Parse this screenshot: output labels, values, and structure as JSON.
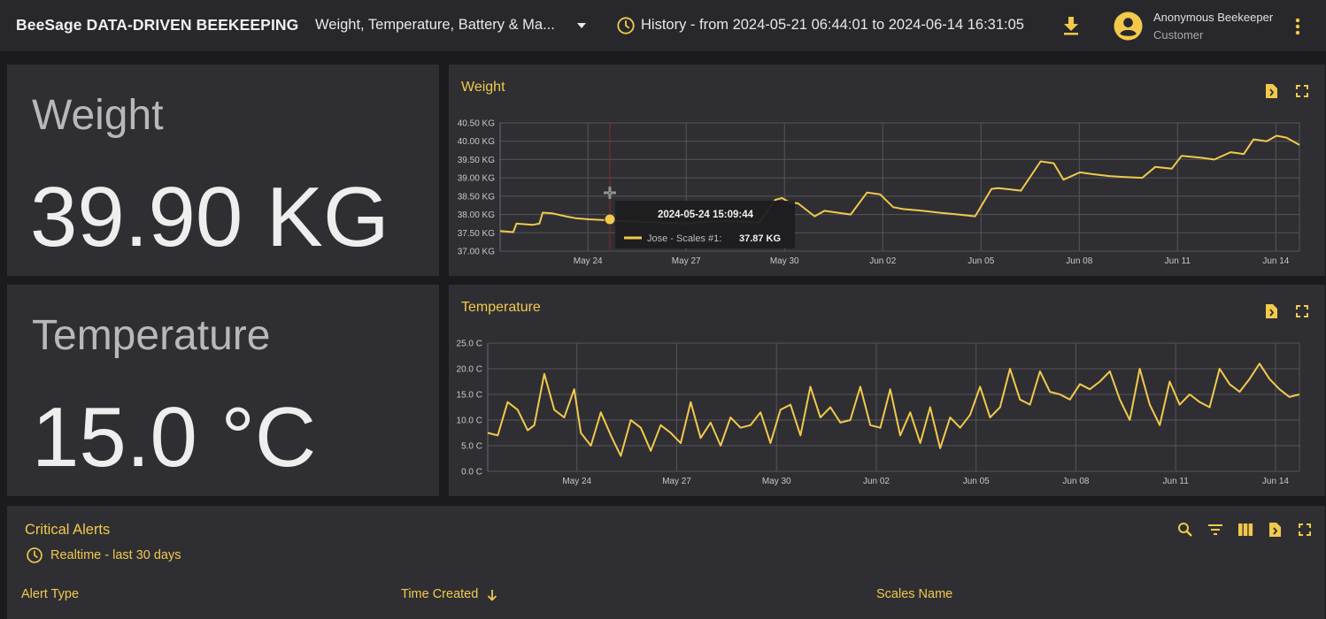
{
  "header": {
    "brand": "BeeSage DATA-DRIVEN BEEKEEPING",
    "dashboard_selector": "Weight, Temperature, Battery & Ma...",
    "history": "History - from 2024-05-21 06:44:01 to 2024-06-14 16:31:05",
    "user_name": "Anonymous Beekeeper",
    "user_role": "Customer",
    "icons": [
      "history-clock-icon",
      "download-icon",
      "avatar-icon",
      "more-vert-icon"
    ]
  },
  "weight_card": {
    "label": "Weight",
    "value": "39.90 KG"
  },
  "temperature_card": {
    "label": "Temperature",
    "value": "15.0 °C"
  },
  "weight_chart": {
    "title": "Weight",
    "tooltip": {
      "time": "2024-05-24 15:09:44",
      "series": "Jose - Scales #1:",
      "value": "37.87 KG"
    }
  },
  "temperature_chart": {
    "title": "Temperature"
  },
  "alerts": {
    "title": "Critical Alerts",
    "subtitle": "Realtime - last 30 days",
    "columns": [
      "Alert Type",
      "Time Created",
      "Scales Name"
    ],
    "sort_column": "Time Created",
    "icons": [
      "search-icon",
      "filter-icon",
      "columns-icon",
      "export-icon",
      "fullscreen-icon"
    ]
  },
  "colors": {
    "accent": "#f2c94c",
    "background": "#1b1b1e",
    "card": "#2f2f33",
    "topbar": "#28282c"
  },
  "chart_data": [
    {
      "type": "line",
      "title": "Weight",
      "ylabel": "",
      "xlabel": "",
      "ylim": [
        37.0,
        40.5
      ],
      "y_ticks": [
        "37.00 KG",
        "37.50 KG",
        "38.00 KG",
        "38.50 KG",
        "39.00 KG",
        "39.50 KG",
        "40.00 KG",
        "40.50 KG"
      ],
      "x_ticks": [
        "May 24",
        "May 27",
        "May 30",
        "Jun 02",
        "Jun 05",
        "Jun 08",
        "Jun 11",
        "Jun 14"
      ],
      "x_range_days": [
        0,
        24.4
      ],
      "x_tick_days": [
        2.68,
        5.68,
        8.68,
        11.68,
        14.68,
        17.68,
        20.68,
        23.68
      ],
      "grid": true,
      "series": [
        {
          "name": "Jose - Scales #1",
          "color": "#f2c94c",
          "x": [
            0,
            0.4,
            0.5,
            1.0,
            1.2,
            1.3,
            1.6,
            2.0,
            2.3,
            2.7,
            3.1,
            3.7,
            4.3,
            5.0,
            5.7,
            6.3,
            6.8,
            7.4,
            7.9,
            8.4,
            8.6,
            8.8,
            9.1,
            9.6,
            9.9,
            10.3,
            10.7,
            11.2,
            11.6,
            12.0,
            12.3,
            12.9,
            13.4,
            14.0,
            14.5,
            15.0,
            15.2,
            15.9,
            16.5,
            16.9,
            17.2,
            17.7,
            18.1,
            18.6,
            19.1,
            19.6,
            20.0,
            20.5,
            20.8,
            21.4,
            21.8,
            22.3,
            22.7,
            23.0,
            23.4,
            23.7,
            24.0,
            24.4
          ],
          "y": [
            37.55,
            37.52,
            37.75,
            37.72,
            37.75,
            38.05,
            38.03,
            37.95,
            37.9,
            37.87,
            37.85,
            37.82,
            37.8,
            37.78,
            37.75,
            37.8,
            37.82,
            37.8,
            37.78,
            38.4,
            38.45,
            38.35,
            38.3,
            37.95,
            38.1,
            38.05,
            38.0,
            38.6,
            38.55,
            38.2,
            38.15,
            38.1,
            38.05,
            38.0,
            37.95,
            38.7,
            38.72,
            38.65,
            39.45,
            39.4,
            38.95,
            39.15,
            39.1,
            39.05,
            39.02,
            39.0,
            39.3,
            39.25,
            39.6,
            39.55,
            39.5,
            39.7,
            39.65,
            40.05,
            40.0,
            40.15,
            40.1,
            39.9
          ]
        }
      ]
    },
    {
      "type": "line",
      "title": "Temperature",
      "ylabel": "",
      "xlabel": "",
      "ylim": [
        0,
        25
      ],
      "y_ticks": [
        "0.0 C",
        "5.0 C",
        "10.0 C",
        "15.0 C",
        "20.0 C",
        "25.0 C"
      ],
      "x_ticks": [
        "May 24",
        "May 27",
        "May 30",
        "Jun 02",
        "Jun 05",
        "Jun 08",
        "Jun 11",
        "Jun 14"
      ],
      "x_range_days": [
        0,
        24.4
      ],
      "x_tick_days": [
        2.68,
        5.68,
        8.68,
        11.68,
        14.68,
        17.68,
        20.68,
        23.68
      ],
      "grid": true,
      "series": [
        {
          "name": "Jose - Scales #1",
          "color": "#f2c94c",
          "x": [
            0,
            0.3,
            0.6,
            0.9,
            1.2,
            1.4,
            1.7,
            2.0,
            2.3,
            2.6,
            2.8,
            3.1,
            3.4,
            3.7,
            4.0,
            4.3,
            4.6,
            4.9,
            5.2,
            5.5,
            5.8,
            6.1,
            6.4,
            6.7,
            7.0,
            7.3,
            7.6,
            7.9,
            8.2,
            8.5,
            8.8,
            9.1,
            9.4,
            9.7,
            10.0,
            10.3,
            10.6,
            10.9,
            11.2,
            11.5,
            11.8,
            12.1,
            12.4,
            12.7,
            13.0,
            13.3,
            13.6,
            13.9,
            14.2,
            14.5,
            14.8,
            15.1,
            15.4,
            15.7,
            16.0,
            16.3,
            16.6,
            16.9,
            17.2,
            17.5,
            17.8,
            18.1,
            18.4,
            18.7,
            19.0,
            19.3,
            19.6,
            19.9,
            20.2,
            20.5,
            20.8,
            21.1,
            21.4,
            21.7,
            22.0,
            22.3,
            22.6,
            22.9,
            23.2,
            23.5,
            23.8,
            24.1,
            24.4
          ],
          "y": [
            7.5,
            7.0,
            13.5,
            12.0,
            8.0,
            9.0,
            19.0,
            12.0,
            10.5,
            16.0,
            7.5,
            5.0,
            11.5,
            7.0,
            3.0,
            10.0,
            8.5,
            4.0,
            9.0,
            7.5,
            5.5,
            13.5,
            6.5,
            9.5,
            5.0,
            10.5,
            8.5,
            9.0,
            11.5,
            5.5,
            12.0,
            13.0,
            7.0,
            16.5,
            10.5,
            12.5,
            9.5,
            10.0,
            16.5,
            9.0,
            8.5,
            16.0,
            7.0,
            11.5,
            5.5,
            12.5,
            4.5,
            10.5,
            8.5,
            11.0,
            16.5,
            10.5,
            12.5,
            20.0,
            14.0,
            13.0,
            19.5,
            15.5,
            15.0,
            14.0,
            17.0,
            16.0,
            17.5,
            19.5,
            14.0,
            10.0,
            20.0,
            13.0,
            9.0,
            17.5,
            13.0,
            15.0,
            13.5,
            12.5,
            20.0,
            17.0,
            15.5,
            18.0,
            21.0,
            18.0,
            16.0,
            14.5,
            15.0
          ]
        }
      ]
    }
  ]
}
